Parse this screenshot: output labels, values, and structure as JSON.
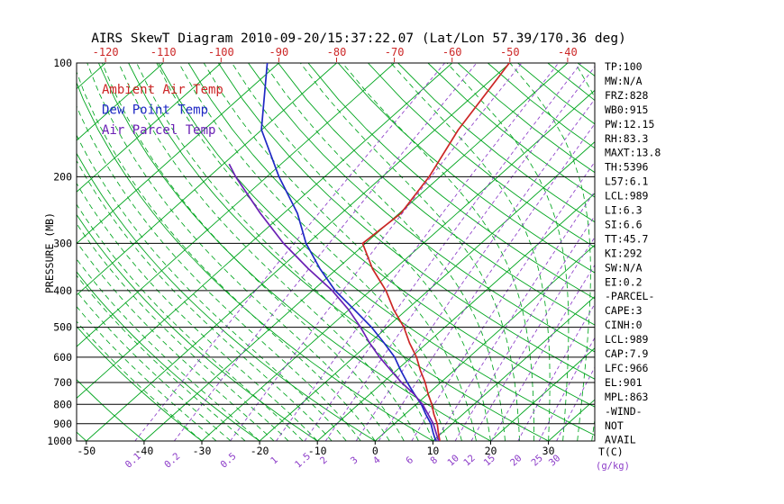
{
  "title": "AIRS SkewT Diagram 2010-09-20/15:37:22.07 (Lat/Lon 57.39/170.36 deg)",
  "legend": {
    "items": [
      {
        "label": "Ambient Air Temp",
        "series": "ambient"
      },
      {
        "label": "Dew Point Temp",
        "series": "dewpoint"
      },
      {
        "label": "Air Parcel Temp",
        "series": "parcel"
      }
    ]
  },
  "colors": {
    "ambient": "#cc2626",
    "dewpoint": "#1f28c4",
    "parcel": "#6a20b4",
    "isotherm": "#00a51e",
    "dry_adiabat": "#00a51e",
    "moist_adiabat": "#00a51e",
    "mixing_ratio": "#8c3cc8",
    "top_axis": "#cc2626",
    "frame": "#000000"
  },
  "axes": {
    "pressure_axis_label": "PRESSURE (MB)",
    "pressure_levels": [
      100,
      200,
      300,
      400,
      500,
      600,
      700,
      800,
      900,
      1000
    ],
    "top_temp_labels": [
      -120,
      -110,
      -100,
      -90,
      -80,
      -70,
      -60,
      -50,
      -40
    ],
    "bottom_temp_labels": [
      -50,
      -40,
      -30,
      -20,
      -10,
      0,
      10,
      20,
      30
    ],
    "temp_unit_label": "T(C)",
    "mixing_unit_label": "(g/kg)"
  },
  "stats_panel": {
    "lines": [
      "TP:100",
      "MW:N/A",
      "FRZ:828",
      "WB0:915",
      "PW:12.15",
      "RH:83.3",
      "MAXT:13.8",
      "TH:5396",
      "L57:6.1",
      "LCL:989",
      "LI:6.3",
      "SI:6.6",
      "TT:45.7",
      "KI:292",
      "SW:N/A",
      "EI:0.2",
      "-PARCEL-",
      "CAPE:3",
      "CINH:0",
      "LCL:989",
      "CAP:7.9",
      "LFC:966",
      "EL:901",
      "MPL:863",
      "-WIND-",
      "NOT",
      "AVAIL"
    ]
  },
  "chart_data": {
    "type": "line",
    "variant": "skew-t-log-p",
    "title": "AIRS SkewT Diagram 2010-09-20/15:37:22.07 (Lat/Lon 57.39/170.36 deg)",
    "x_axis": {
      "label": "T(C)",
      "top_axis_range": [
        -120,
        -40
      ],
      "tick_step": 10
    },
    "y_axis": {
      "label": "PRESSURE (MB)",
      "range": [
        100,
        1000
      ],
      "scale": "log",
      "tick_step": 100
    },
    "series": [
      {
        "name": "Ambient Air Temp",
        "key": "ambient",
        "points_p_t": [
          [
            1000,
            11.2
          ],
          [
            950,
            9.3
          ],
          [
            900,
            7.4
          ],
          [
            850,
            5.0
          ],
          [
            800,
            2.7
          ],
          [
            750,
            0.0
          ],
          [
            700,
            -2.7
          ],
          [
            650,
            -5.9
          ],
          [
            600,
            -9.1
          ],
          [
            550,
            -13.1
          ],
          [
            500,
            -17.1
          ],
          [
            450,
            -22.2
          ],
          [
            400,
            -27.3
          ],
          [
            350,
            -33.9
          ],
          [
            300,
            -40.5
          ],
          [
            250,
            -39.7
          ],
          [
            200,
            -41.9
          ],
          [
            150,
            -46.0
          ],
          [
            100,
            -50.1
          ]
        ]
      },
      {
        "name": "Dew Point Temp",
        "key": "dewpoint",
        "points_p_t": [
          [
            1000,
            10.5
          ],
          [
            950,
            8.4
          ],
          [
            900,
            6.3
          ],
          [
            850,
            3.6
          ],
          [
            800,
            0.9
          ],
          [
            750,
            -2.4
          ],
          [
            700,
            -5.8
          ],
          [
            650,
            -9.3
          ],
          [
            600,
            -12.9
          ],
          [
            550,
            -17.5
          ],
          [
            500,
            -22.7
          ],
          [
            450,
            -29.0
          ],
          [
            400,
            -36.1
          ],
          [
            350,
            -43.0
          ],
          [
            300,
            -50.3
          ],
          [
            250,
            -57.6
          ],
          [
            200,
            -67.9
          ],
          [
            150,
            -80.1
          ],
          [
            100,
            -92.0
          ]
        ]
      },
      {
        "name": "Air Parcel Temp",
        "key": "parcel",
        "points_p_t": [
          [
            1000,
            11.0
          ],
          [
            950,
            8.9
          ],
          [
            900,
            6.7
          ],
          [
            850,
            4.0
          ],
          [
            800,
            1.1
          ],
          [
            750,
            -2.5
          ],
          [
            700,
            -6.8
          ],
          [
            650,
            -11.0
          ],
          [
            600,
            -15.5
          ],
          [
            550,
            -20.0
          ],
          [
            500,
            -24.6
          ],
          [
            450,
            -30.0
          ],
          [
            400,
            -36.6
          ],
          [
            350,
            -45.0
          ],
          [
            300,
            -54.2
          ],
          [
            250,
            -64.0
          ],
          [
            200,
            -75.4
          ],
          [
            185,
            -79.0
          ]
        ]
      }
    ],
    "grid": {
      "isotherms_c": {
        "min": -160,
        "max": 40,
        "step": 10
      },
      "dry_adiabats_c": {
        "min": -50,
        "max": 190,
        "step": 10
      },
      "moist_adiabats_c": {
        "min": -30,
        "max": 45,
        "step": 2.5
      },
      "mixing_ratios_gkg": [
        0.1,
        0.2,
        0.5,
        1,
        1.5,
        2,
        3,
        4,
        6,
        8,
        10,
        12,
        15,
        20,
        25,
        30
      ]
    }
  }
}
